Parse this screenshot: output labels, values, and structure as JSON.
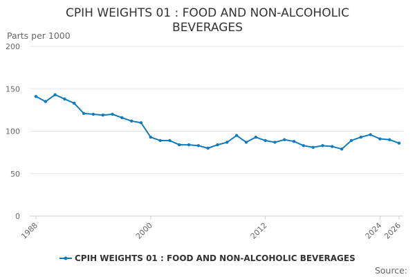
{
  "chart_data": {
    "type": "line",
    "title": "CPIH WEIGHTS 01 : FOOD AND NON-ALCOHOLIC BEVERAGES",
    "title_lines": [
      "CPIH WEIGHTS 01 : FOOD AND NON-ALCOHOLIC",
      "BEVERAGES"
    ],
    "ylabel": "Parts per 1000",
    "xlabel": "",
    "ylim": [
      0,
      200
    ],
    "yticks": [
      0,
      50,
      100,
      150,
      200
    ],
    "xlim": [
      1988,
      2026
    ],
    "xtick_labels": [
      "1988",
      "2000",
      "2012",
      "2024",
      "2026"
    ],
    "grid": true,
    "legend_position": "bottom",
    "source_label": "Source:",
    "series": [
      {
        "name": "CPIH WEIGHTS 01 : FOOD AND NON-ALCOHOLIC BEVERAGES",
        "color": "#0f7bbd",
        "x": [
          1988,
          1989,
          1990,
          1991,
          1992,
          1993,
          1994,
          1995,
          1996,
          1997,
          1998,
          1999,
          2000,
          2001,
          2002,
          2003,
          2004,
          2005,
          2006,
          2007,
          2008,
          2009,
          2010,
          2011,
          2012,
          2013,
          2014,
          2015,
          2016,
          2017,
          2018,
          2019,
          2020,
          2021,
          2022,
          2023,
          2024,
          2025,
          2026
        ],
        "values": [
          141,
          135,
          143,
          138,
          133,
          121,
          120,
          119,
          120,
          116,
          112,
          110,
          93,
          89,
          89,
          84,
          84,
          83,
          80,
          84,
          87,
          95,
          87,
          93,
          89,
          87,
          90,
          88,
          83,
          81,
          83,
          82,
          79,
          89,
          93,
          96,
          91,
          90,
          86
        ]
      }
    ]
  }
}
